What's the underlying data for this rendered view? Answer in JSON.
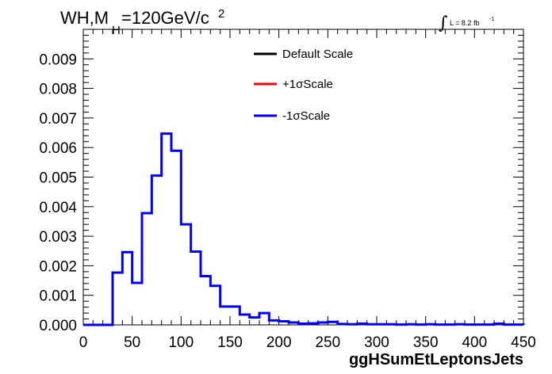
{
  "chart_data": {
    "type": "line",
    "title": {
      "main": "WH,M",
      "subscript": "H",
      "rest": "=120GeV/c",
      "superscript": "2"
    },
    "annotation": {
      "integral": "∫",
      "text": "L = 8.2 fb",
      "superscript": "-1"
    },
    "xlabel": "ggHSumEtLeptonsJets",
    "ylabel": "",
    "xlim": [
      0,
      450
    ],
    "ylim": [
      0,
      0.01
    ],
    "x_ticks": [
      "0",
      "50",
      "100",
      "150",
      "200",
      "250",
      "300",
      "350",
      "400",
      "450"
    ],
    "y_ticks": [
      "0.000",
      "0.001",
      "0.002",
      "0.003",
      "0.004",
      "0.005",
      "0.006",
      "0.007",
      "0.008",
      "0.009"
    ],
    "bin_width": 10,
    "bin_edges_start": 0,
    "legend": [
      {
        "name": "Default Scale",
        "color": "#000000"
      },
      {
        "name": "+1σScale",
        "color": "#ff0000"
      },
      {
        "name": "-1σScale",
        "color": "#0000ff"
      }
    ],
    "series": [
      {
        "name": "-1σScale",
        "color": "#0000ff",
        "values": [
          0,
          0,
          0,
          0.00177,
          0.00246,
          0.00142,
          0.00378,
          0.00505,
          0.00647,
          0.00589,
          0.0034,
          0.00248,
          0.00165,
          0.00132,
          0.00062,
          0.00062,
          0.00035,
          0.00025,
          0.0004,
          0.00015,
          0.00012,
          8e-05,
          4e-05,
          5e-05,
          8e-05,
          0.0001,
          3e-05,
          2e-05,
          4e-05,
          2e-05,
          2e-05,
          2e-05,
          1e-05,
          2e-05,
          1e-05,
          2e-05,
          1e-05,
          1e-05,
          2e-05,
          1e-05,
          1e-05,
          1e-05,
          4e-05,
          1e-05,
          1e-05
        ]
      }
    ]
  }
}
